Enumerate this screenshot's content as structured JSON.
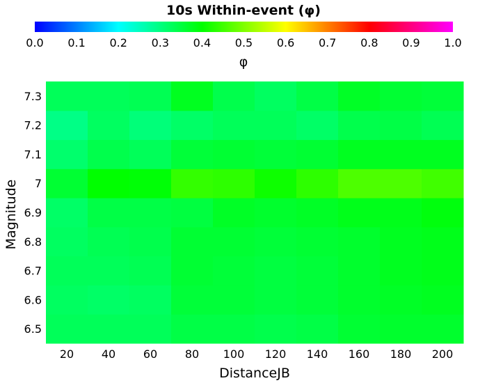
{
  "chart_data": {
    "type": "heatmap",
    "title": "10s Within-event (φ)",
    "colorbar": {
      "label": "φ",
      "range": [
        0.0,
        1.0
      ],
      "ticks": [
        "0.0",
        "0.1",
        "0.2",
        "0.3",
        "0.4",
        "0.5",
        "0.6",
        "0.7",
        "0.8",
        "0.9",
        "1.0"
      ],
      "colormap": [
        "#0000ff",
        "#00ffff",
        "#00ff00",
        "#ffff00",
        "#ff0000",
        "#ff00ff"
      ],
      "placement": "top"
    },
    "xlabel": "DistanceJB",
    "ylabel": "Magnitude",
    "x_ticks": [
      "20",
      "40",
      "60",
      "80",
      "100",
      "120",
      "140",
      "160",
      "180",
      "200"
    ],
    "y_ticks": [
      "6.5",
      "6.6",
      "6.7",
      "6.8",
      "6.9",
      "7",
      "7.1",
      "7.2",
      "7.3"
    ],
    "x_values": [
      20,
      40,
      60,
      80,
      100,
      120,
      140,
      160,
      180,
      200
    ],
    "y_values": [
      6.5,
      6.6,
      6.7,
      6.8,
      6.9,
      7.0,
      7.1,
      7.2,
      7.3
    ],
    "values": [
      [
        0.33,
        0.33,
        0.33,
        0.345,
        0.345,
        0.34,
        0.345,
        0.36,
        0.365,
        0.365
      ],
      [
        0.325,
        0.32,
        0.325,
        0.355,
        0.355,
        0.35,
        0.355,
        0.365,
        0.37,
        0.375
      ],
      [
        0.33,
        0.33,
        0.335,
        0.36,
        0.355,
        0.35,
        0.355,
        0.365,
        0.375,
        0.38
      ],
      [
        0.325,
        0.335,
        0.34,
        0.36,
        0.36,
        0.355,
        0.36,
        0.365,
        0.375,
        0.38
      ],
      [
        0.32,
        0.345,
        0.345,
        0.35,
        0.37,
        0.365,
        0.37,
        0.38,
        0.38,
        0.39
      ],
      [
        0.36,
        0.4,
        0.395,
        0.44,
        0.435,
        0.41,
        0.435,
        0.46,
        0.46,
        0.45
      ],
      [
        0.315,
        0.34,
        0.33,
        0.355,
        0.36,
        0.355,
        0.36,
        0.375,
        0.375,
        0.375
      ],
      [
        0.295,
        0.325,
        0.305,
        0.32,
        0.33,
        0.33,
        0.32,
        0.34,
        0.345,
        0.335
      ],
      [
        0.33,
        0.33,
        0.335,
        0.375,
        0.34,
        0.325,
        0.345,
        0.37,
        0.36,
        0.355
      ]
    ]
  }
}
